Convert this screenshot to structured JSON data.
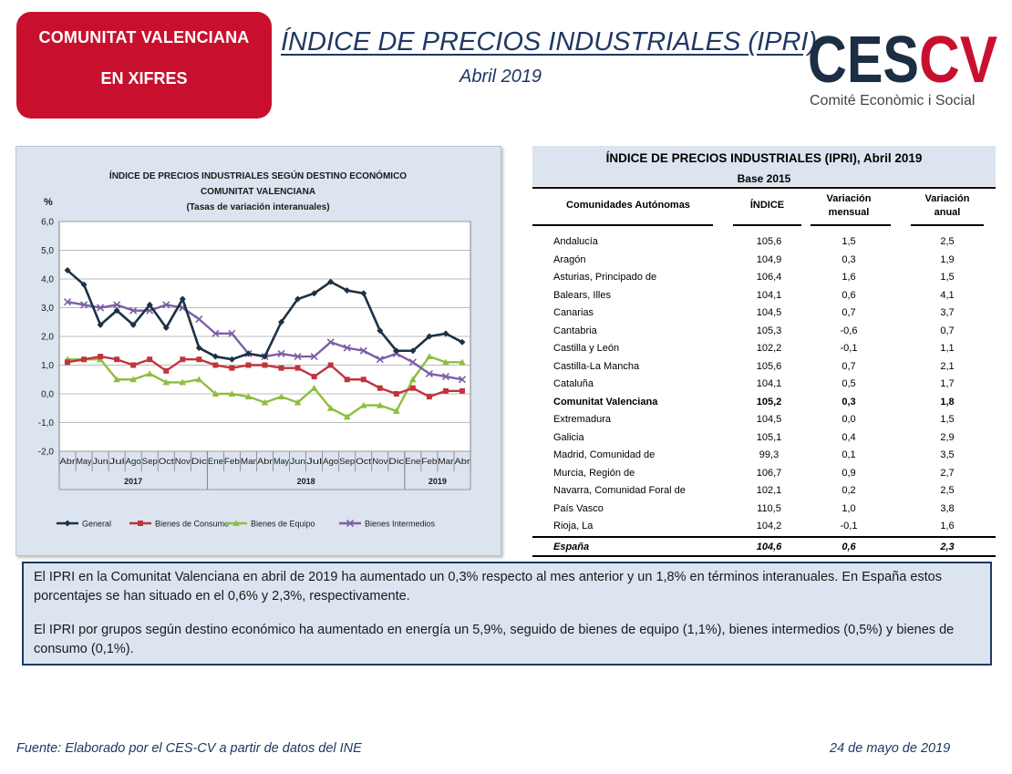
{
  "header": {
    "badge_line1": "COMUNITAT VALENCIANA",
    "badge_line2": "EN XIFRES",
    "title": "ÍNDICE DE PRECIOS INDUSTRIALES (IPRI)",
    "subtitle": "Abril 2019",
    "logo_text": "CESCV",
    "logo_tagline": "Comité Econòmic i Social"
  },
  "colors": {
    "brand_red": "#c8102e",
    "navy": "#1f3864",
    "panel_bg": "#dbe4ef",
    "general": "#1c3144",
    "consumo": "#c0343c",
    "equipo": "#8cbf3f",
    "intermedios": "#7b5ea7"
  },
  "chart_data": {
    "type": "line",
    "title": "ÍNDICE DE PRECIOS INDUSTRIALES SEGÚN DESTINO ECONÓMICO",
    "title2": "COMUNITAT  VALENCIANA",
    "title3": "(Tasas de variación interanuales)",
    "ylabel": "%",
    "ylim": [
      -2,
      6
    ],
    "yticks": [
      "-2,0",
      "-1,0",
      "0,0",
      "1,0",
      "2,0",
      "3,0",
      "4,0",
      "5,0",
      "6,0"
    ],
    "grid": true,
    "legend_position": "bottom",
    "categories": [
      "Abr",
      "May",
      "Jun",
      "Jul",
      "Ago",
      "Sep",
      "Oct",
      "Nov",
      "Dic",
      "Ene",
      "Feb",
      "Mar",
      "Abr",
      "May",
      "Jun",
      "Jul",
      "Ago",
      "Sep",
      "Oct",
      "Nov",
      "Dic",
      "Ene",
      "Feb",
      "Mar",
      "Abr"
    ],
    "years": [
      {
        "label": "2017",
        "from": 0,
        "to": 8
      },
      {
        "label": "2018",
        "from": 9,
        "to": 20
      },
      {
        "label": "2019",
        "from": 21,
        "to": 24
      }
    ],
    "series": [
      {
        "name": "General",
        "values": [
          4.3,
          3.8,
          2.4,
          2.9,
          2.4,
          3.1,
          2.3,
          3.3,
          1.6,
          1.3,
          1.2,
          1.4,
          1.3,
          2.5,
          3.3,
          3.5,
          3.9,
          3.6,
          3.5,
          2.2,
          1.5,
          1.5,
          2.0,
          2.1,
          1.8
        ]
      },
      {
        "name": "Bienes de Consumo",
        "values": [
          1.1,
          1.2,
          1.3,
          1.2,
          1.0,
          1.2,
          0.8,
          1.2,
          1.2,
          1.0,
          0.9,
          1.0,
          1.0,
          0.9,
          0.9,
          0.6,
          1.0,
          0.5,
          0.5,
          0.2,
          0.0,
          0.2,
          -0.1,
          0.1,
          0.1
        ]
      },
      {
        "name": "Bienes de Equipo",
        "values": [
          1.2,
          1.2,
          1.2,
          0.5,
          0.5,
          0.7,
          0.4,
          0.4,
          0.5,
          0.0,
          0.0,
          -0.1,
          -0.3,
          -0.1,
          -0.3,
          0.2,
          -0.5,
          -0.8,
          -0.4,
          -0.4,
          -0.6,
          0.5,
          1.3,
          1.1,
          1.1
        ]
      },
      {
        "name": "Bienes Intermedios",
        "values": [
          3.2,
          3.1,
          3.0,
          3.1,
          2.9,
          2.9,
          3.1,
          3.0,
          2.6,
          2.1,
          2.1,
          1.4,
          1.3,
          1.4,
          1.3,
          1.3,
          1.8,
          1.6,
          1.5,
          1.2,
          1.4,
          1.1,
          0.7,
          0.6,
          0.5
        ]
      }
    ]
  },
  "table": {
    "title": "ÍNDICE DE PRECIOS INDUSTRIALES (IPRI), Abril 2019",
    "base": "Base 2015",
    "col_region": "Comunidades Autónomas",
    "col_index": "ÍNDICE",
    "col_mensual_1": "Variación",
    "col_mensual_2": "mensual",
    "col_anual_1": "Variación",
    "col_anual_2": "anual",
    "rows": [
      {
        "region": "Andalucía",
        "index": "105,6",
        "mensual": "1,5",
        "anual": "2,5"
      },
      {
        "region": "Aragón",
        "index": "104,9",
        "mensual": "0,3",
        "anual": "1,9"
      },
      {
        "region": "Asturias, Principado de",
        "index": "106,4",
        "mensual": "1,6",
        "anual": "1,5"
      },
      {
        "region": "Balears, Illes",
        "index": "104,1",
        "mensual": "0,6",
        "anual": "4,1"
      },
      {
        "region": "Canarias",
        "index": "104,5",
        "mensual": "0,7",
        "anual": "3,7"
      },
      {
        "region": "Cantabria",
        "index": "105,3",
        "mensual": "-0,6",
        "anual": "0,7"
      },
      {
        "region": "Castilla y León",
        "index": "102,2",
        "mensual": "-0,1",
        "anual": "1,1"
      },
      {
        "region": "Castilla-La Mancha",
        "index": "105,6",
        "mensual": "0,7",
        "anual": "2,1"
      },
      {
        "region": "Cataluña",
        "index": "104,1",
        "mensual": "0,5",
        "anual": "1,7"
      },
      {
        "region": "Comunitat Valenciana",
        "index": "105,2",
        "mensual": "0,3",
        "anual": "1,8"
      },
      {
        "region": "Extremadura",
        "index": "104,5",
        "mensual": "0,0",
        "anual": "1,5"
      },
      {
        "region": "Galicia",
        "index": "105,1",
        "mensual": "0,4",
        "anual": "2,9"
      },
      {
        "region": "Madrid, Comunidad de",
        "index": "99,3",
        "mensual": "0,1",
        "anual": "3,5"
      },
      {
        "region": "Murcia, Región de",
        "index": "106,7",
        "mensual": "0,9",
        "anual": "2,7"
      },
      {
        "region": "Navarra, Comunidad Foral de",
        "index": "102,1",
        "mensual": "0,2",
        "anual": "2,5"
      },
      {
        "region": "País Vasco",
        "index": "110,5",
        "mensual": "1,0",
        "anual": "3,8"
      },
      {
        "region": "Rioja, La",
        "index": "104,2",
        "mensual": "-0,1",
        "anual": "1,6"
      }
    ],
    "total": {
      "region": "España",
      "index": "104,6",
      "mensual": "0,6",
      "anual": "2,3"
    }
  },
  "text": {
    "p1": "El IPRI en la Comunitat Valenciana en abril de 2019 ha aumentado un 0,3% respecto al mes anterior y un 1,8% en términos interanuales. En España estos porcentajes se han situado en el 0,6% y 2,3%, respectivamente.",
    "p2": "El IPRI por grupos según destino económico ha aumentado en energía un 5,9%, seguido de bienes de equipo (1,1%), bienes intermedios (0,5%) y bienes de consumo (0,1%)."
  },
  "footer": {
    "source": "Fuente: Elaborado por el CES-CV a partir de datos del INE",
    "date": "24 de mayo de 2019"
  }
}
